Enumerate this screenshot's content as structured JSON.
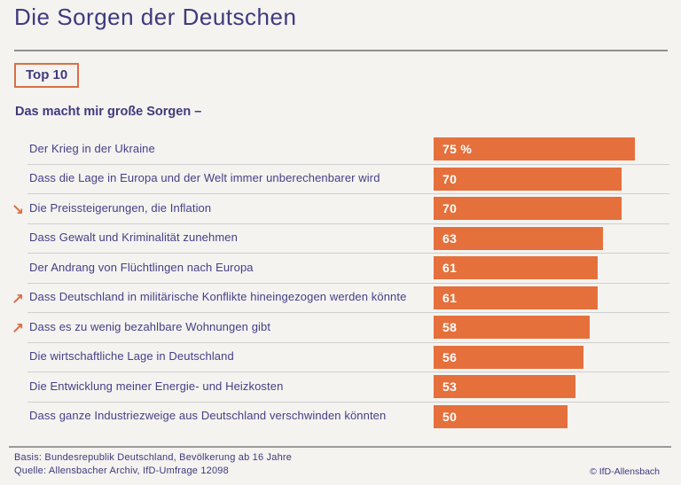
{
  "page": {
    "title": "Die Sorgen der Deutschen",
    "badge": "Top 10",
    "subtitle": "Das macht mir große Sorgen –",
    "footer": {
      "basis": "Basis: Bundesrepublik Deutschland, Bevölkerung ab 16 Jahre",
      "quelle": "Quelle: Allensbacher Archiv, IfD-Umfrage 12098",
      "copyright": "© IfD-Allensbach"
    }
  },
  "colors": {
    "accent_orange": "#E5703C",
    "text_purple": "#3E3A7D",
    "background": "#F4F3F0",
    "separator": "#CFCFCF",
    "bar_value_text": "#FFFFFF"
  },
  "icons": {
    "trend_up": "trend-up-icon",
    "trend_down": "trend-down-icon",
    "trend_up_glyph": "↗",
    "trend_down_glyph": "↘"
  },
  "chart_data": {
    "type": "bar",
    "orientation": "horizontal",
    "title": "Die Sorgen der Deutschen",
    "subtitle": "Das macht mir große Sorgen –",
    "unit": "%",
    "value_axis_visible": false,
    "grid": false,
    "legend": "none",
    "xlim": [
      0,
      100
    ],
    "categories": [
      "Der Krieg in der Ukraine",
      "Dass die Lage in Europa und der Welt immer unberechenbarer wird",
      "Die Preissteigerungen, die Inflation",
      "Dass Gewalt und Kriminalität zunehmen",
      "Der Andrang von Flüchtlingen nach Europa",
      "Dass Deutschland in militärische Konflikte hineingezogen werden könnte",
      "Dass es zu wenig bezahlbare Wohnungen gibt",
      "Die wirtschaftliche Lage in Deutschland",
      "Die Entwicklung meiner Energie- und Heizkosten",
      "Dass ganze Industriezweige aus Deutschland verschwinden könnten"
    ],
    "values": [
      75,
      70,
      70,
      63,
      61,
      61,
      58,
      56,
      53,
      50
    ],
    "value_labels": [
      "75 %",
      "70",
      "70",
      "63",
      "61",
      "61",
      "58",
      "56",
      "53",
      "50"
    ],
    "trend_arrows": [
      null,
      null,
      "down",
      null,
      null,
      "up",
      "up",
      null,
      null,
      null
    ]
  }
}
